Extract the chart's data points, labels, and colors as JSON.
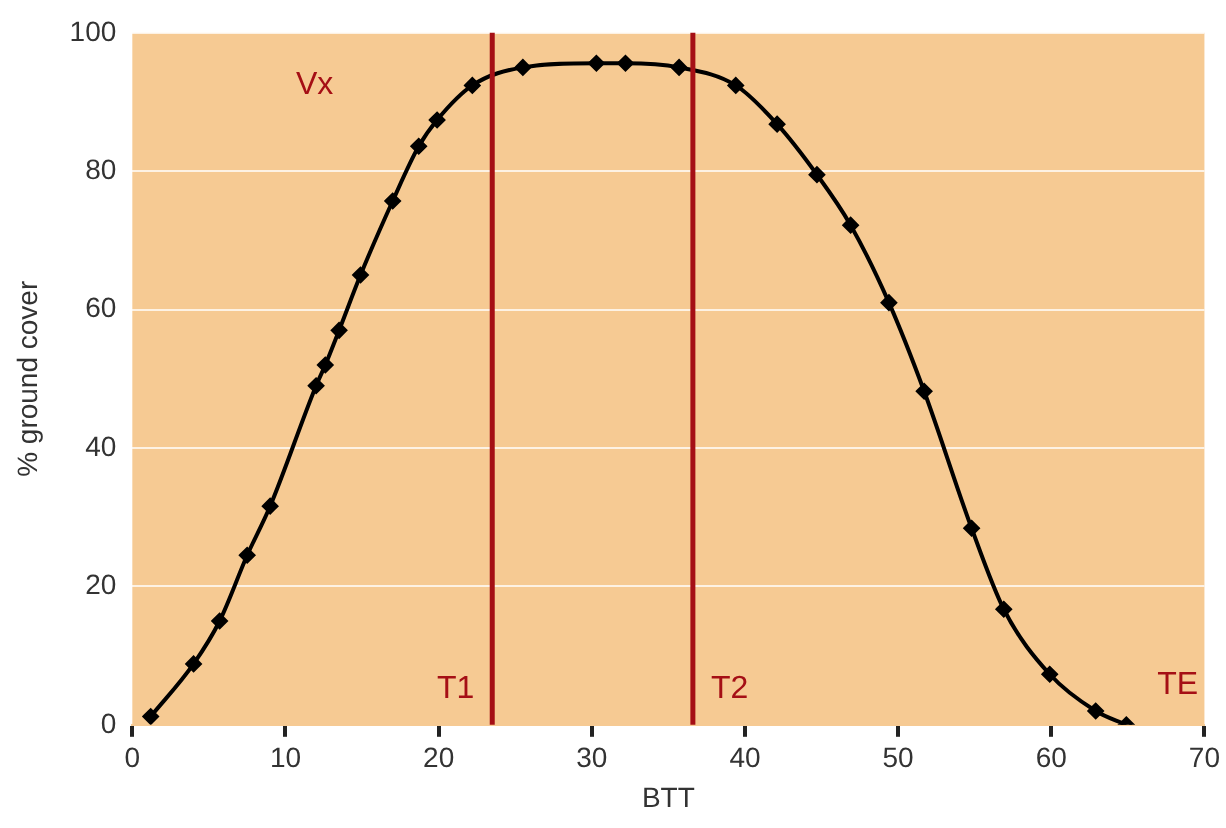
{
  "chart_data": {
    "type": "line",
    "xlabel": "BTT",
    "ylabel": "% ground cover",
    "xlim": [
      0,
      70
    ],
    "xticks": [
      0,
      10,
      20,
      30,
      40,
      50,
      60,
      70
    ],
    "ylim": [
      0,
      100
    ],
    "yticks": [
      0,
      20,
      40,
      60,
      80,
      100
    ],
    "grid": "y",
    "legend": false,
    "marker": "diamond",
    "line_style": "solid",
    "series": [
      {
        "color": "#000000",
        "x": [
          1.2,
          4.0,
          5.7,
          7.5,
          9.0,
          12.0,
          12.6,
          13.5,
          14.9,
          17.0,
          18.7,
          19.9,
          22.2,
          25.5,
          30.3,
          32.2,
          35.7,
          39.4,
          42.1,
          44.7,
          46.9,
          49.4,
          51.7,
          54.8,
          56.9,
          59.9,
          62.9,
          64.9
        ],
        "values": [
          1.2,
          8.8,
          15,
          24.5,
          31.6,
          49,
          52,
          57,
          65,
          75.7,
          83.6,
          87.4,
          92.4,
          95,
          95.6,
          95.6,
          95,
          92.4,
          86.8,
          79.5,
          72.2,
          61,
          48.2,
          28.4,
          16.7,
          7.3,
          2,
          0
        ]
      }
    ],
    "ref_lines": [
      {
        "axis": "x",
        "value": 23.5,
        "label": "T1",
        "color": "#a50f15"
      },
      {
        "axis": "x",
        "value": 36.6,
        "label": "T2",
        "color": "#a50f15"
      }
    ],
    "annotations": [
      "Vx",
      "TE"
    ]
  }
}
